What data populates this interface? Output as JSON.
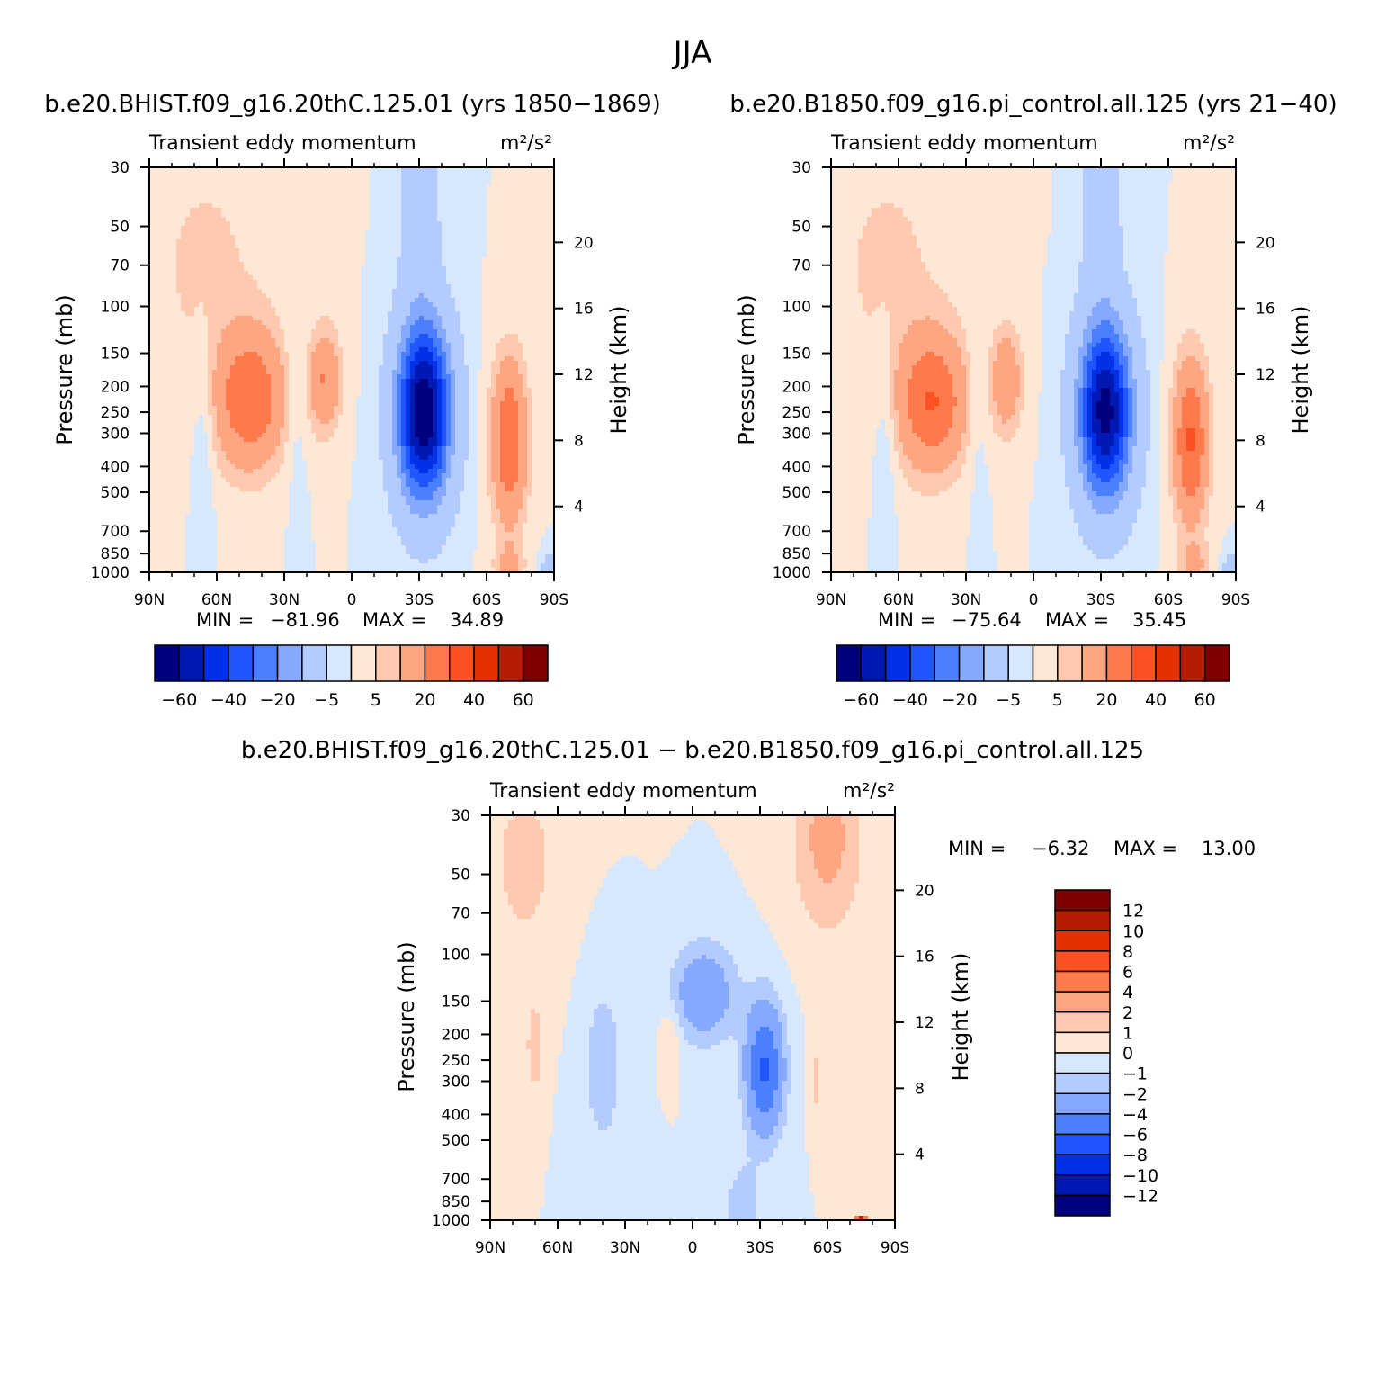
{
  "figure": {
    "title": "JJA",
    "diff_caption": "b.e20.BHIST.f09_g16.20thC.125.01 − b.e20.B1850.f09_g16.pi_control.all.125",
    "min_prefix": "MIN =",
    "max_prefix": "MAX ="
  },
  "chart_data": [
    {
      "id": "panel-a",
      "type": "heatmap",
      "title": "b.e20.BHIST.f09_g16.20thC.125.01 (yrs 1850−1869)",
      "subtitle": "Transient eddy momentum",
      "units": "m²/s²",
      "xlabel": "",
      "ylabel": "Pressure (mb)",
      "y2label": "Height (km)",
      "x_ticks": [
        "90N",
        "60N",
        "30N",
        "0",
        "30S",
        "60S",
        "90S"
      ],
      "y_ticks": [
        30,
        50,
        70,
        100,
        150,
        200,
        250,
        300,
        400,
        500,
        700,
        850,
        1000
      ],
      "y2_ticks": [
        20,
        16,
        12,
        8,
        4
      ],
      "yscale": "log",
      "ylim": [
        1000,
        30
      ],
      "min": "−81.96",
      "max": "34.89",
      "colorbar_orientation": "horizontal",
      "colorbar_labels": [
        "−60",
        "−40",
        "−20",
        "−5",
        "5",
        "20",
        "40",
        "60"
      ],
      "features": [
        {
          "lat": 45,
          "p": 225,
          "v": 28,
          "sx": 11,
          "sy": 0.42
        },
        {
          "lat": 12,
          "p": 190,
          "v": 20,
          "sx": 5,
          "sy": 0.32
        },
        {
          "lat": -32,
          "p": 250,
          "v": -81,
          "sx": 8.5,
          "sy": 0.55
        },
        {
          "lat": -30,
          "p": 40,
          "v": -14,
          "sx": 6,
          "sy": 0.6
        },
        {
          "lat": -70,
          "p": 320,
          "v": 30,
          "sx": 5.5,
          "sy": 0.5
        },
        {
          "lat": -70,
          "p": 950,
          "v": 10,
          "sx": 5,
          "sy": 0.15
        },
        {
          "lat": 66,
          "p": 290,
          "v": -6,
          "sx": 3.5,
          "sy": 0.6
        },
        {
          "lat": 25,
          "p": 230,
          "v": -5,
          "sx": 3.5,
          "sy": 0.55
        },
        {
          "lat": 65,
          "p": 70,
          "v": 6,
          "sx": 22,
          "sy": 0.9
        },
        {
          "lat": -88,
          "p": 980,
          "v": -12,
          "sx": 2.5,
          "sy": 0.12
        }
      ]
    },
    {
      "id": "panel-b",
      "type": "heatmap",
      "title": "b.e20.B1850.f09_g16.pi_control.all.125 (yrs 21−40)",
      "subtitle": "Transient eddy momentum",
      "units": "m²/s²",
      "xlabel": "",
      "ylabel": "Pressure (mb)",
      "y2label": "Height (km)",
      "x_ticks": [
        "90N",
        "60N",
        "30N",
        "0",
        "30S",
        "60S",
        "90S"
      ],
      "y_ticks": [
        30,
        50,
        70,
        100,
        150,
        200,
        250,
        300,
        400,
        500,
        700,
        850,
        1000
      ],
      "y2_ticks": [
        20,
        16,
        12,
        8,
        4
      ],
      "yscale": "log",
      "ylim": [
        1000,
        30
      ],
      "min": "−75.64",
      "max": "35.45",
      "colorbar_orientation": "horizontal",
      "colorbar_labels": [
        "−60",
        "−40",
        "−20",
        "−5",
        "5",
        "20",
        "40",
        "60"
      ],
      "features": [
        {
          "lat": 45,
          "p": 230,
          "v": 29,
          "sx": 11,
          "sy": 0.42
        },
        {
          "lat": 12,
          "p": 190,
          "v": 18,
          "sx": 5,
          "sy": 0.32
        },
        {
          "lat": -32,
          "p": 250,
          "v": -75,
          "sx": 8.5,
          "sy": 0.55
        },
        {
          "lat": -30,
          "p": 40,
          "v": -14,
          "sx": 6,
          "sy": 0.6
        },
        {
          "lat": -70,
          "p": 320,
          "v": 31,
          "sx": 5.5,
          "sy": 0.5
        },
        {
          "lat": -72,
          "p": 950,
          "v": 10,
          "sx": 5,
          "sy": 0.15
        },
        {
          "lat": 66,
          "p": 290,
          "v": -6,
          "sx": 3.5,
          "sy": 0.6
        },
        {
          "lat": 25,
          "p": 230,
          "v": -5,
          "sx": 3.5,
          "sy": 0.55
        },
        {
          "lat": 65,
          "p": 70,
          "v": 6,
          "sx": 22,
          "sy": 0.9
        },
        {
          "lat": -88,
          "p": 980,
          "v": -12,
          "sx": 2.5,
          "sy": 0.12
        }
      ]
    },
    {
      "id": "panel-diff",
      "type": "heatmap",
      "title": "",
      "subtitle": "Transient eddy momentum",
      "units": "m²/s²",
      "xlabel": "",
      "ylabel": "Pressure (mb)",
      "y2label": "Height (km)",
      "x_ticks": [
        "90N",
        "60N",
        "30N",
        "0",
        "30S",
        "60S",
        "90S"
      ],
      "y_ticks": [
        30,
        50,
        70,
        100,
        150,
        200,
        250,
        300,
        400,
        500,
        700,
        850,
        1000
      ],
      "y2_ticks": [
        20,
        16,
        12,
        8,
        4
      ],
      "yscale": "log",
      "ylim": [
        1000,
        30
      ],
      "min": "−6.32",
      "max": "13.00",
      "colorbar_orientation": "vertical",
      "colorbar_labels": [
        "12",
        "10",
        "8",
        "6",
        "4",
        "2",
        "1",
        "0",
        "−1",
        "−2",
        "−4",
        "−6",
        "−8",
        "−10",
        "−12"
      ],
      "features": [
        {
          "lat": -32,
          "p": 270,
          "v": -6.3,
          "sx": 6,
          "sy": 0.4
        },
        {
          "lat": -5,
          "p": 140,
          "v": -3.5,
          "sx": 10,
          "sy": 0.3
        },
        {
          "lat": -22,
          "p": 900,
          "v": -1.6,
          "sx": 6,
          "sy": 0.3
        },
        {
          "lat": 40,
          "p": 260,
          "v": -1.4,
          "sx": 8,
          "sy": 0.7
        },
        {
          "lat": -60,
          "p": 36,
          "v": 2.5,
          "sx": 11,
          "sy": 0.6
        },
        {
          "lat": 70,
          "p": 230,
          "v": 1.4,
          "sx": 3,
          "sy": 0.3
        },
        {
          "lat": 10,
          "p": 210,
          "v": 1.3,
          "sx": 3,
          "sy": 0.2
        },
        {
          "lat": -55,
          "p": 300,
          "v": 1.3,
          "sx": 2,
          "sy": 0.25
        },
        {
          "lat": -75,
          "p": 990,
          "v": 13,
          "sx": 1.5,
          "sy": 0.02
        },
        {
          "lat": 75,
          "p": 45,
          "v": 1.2,
          "sx": 16,
          "sy": 0.8
        }
      ]
    }
  ],
  "colors": {
    "ramp": [
      "#00007f",
      "#0019b3",
      "#0031e6",
      "#1f56ff",
      "#4a80ff",
      "#84a9ff",
      "#b3cbff",
      "#d7e8fe",
      "#ffe7d5",
      "#fec9ae",
      "#fea582",
      "#fe7a4d",
      "#fc5122",
      "#e33200",
      "#b51d00",
      "#7f0000"
    ]
  }
}
